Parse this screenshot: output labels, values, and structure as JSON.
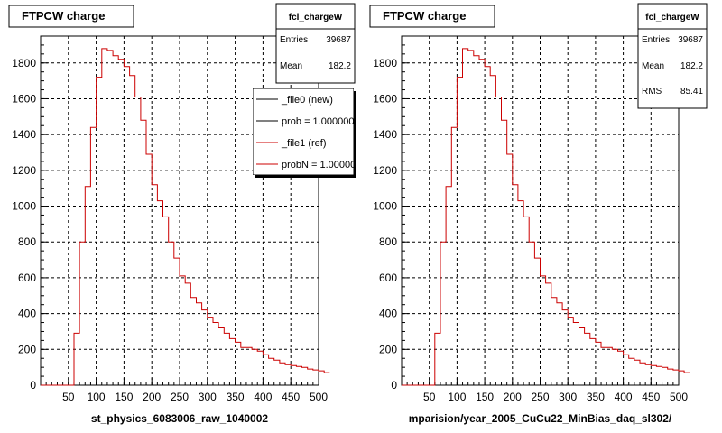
{
  "chart_data": [
    {
      "type": "bar",
      "title": "FTPCW charge",
      "xlabel": "st_physics_6083006_raw_1040002",
      "ylabel": "",
      "xlim": [
        0,
        500
      ],
      "ylim": [
        0,
        1950
      ],
      "x_ticks": [
        "50",
        "100",
        "150",
        "200",
        "250",
        "300",
        "350",
        "400",
        "450",
        "500"
      ],
      "y_ticks": [
        "0",
        "200",
        "400",
        "600",
        "800",
        "1000",
        "1200",
        "1400",
        "1600",
        "1800"
      ],
      "grid": true,
      "bin_width": 10,
      "bin_edges_start": 0,
      "values": [
        0,
        0,
        0,
        0,
        0,
        0,
        290,
        800,
        1110,
        1440,
        1720,
        1880,
        1870,
        1840,
        1820,
        1780,
        1730,
        1610,
        1480,
        1290,
        1120,
        1030,
        940,
        800,
        710,
        610,
        570,
        490,
        460,
        420,
        380,
        350,
        320,
        290,
        260,
        240,
        210,
        210,
        200,
        190,
        170,
        150,
        140,
        125,
        115,
        110,
        105,
        100,
        90,
        85,
        80,
        70
      ],
      "stats": {
        "name": "fcl_chargeW",
        "rows": [
          {
            "label": "Entries",
            "value": "39687"
          },
          {
            "label": "Mean",
            "value": "182.2"
          }
        ]
      },
      "legend": [
        {
          "label": "_file0 (new)",
          "color": "#000000"
        },
        {
          "label": "prob = 1.000000",
          "color": "#000000"
        },
        {
          "label": "_file1 (ref)",
          "color": "#cc0000"
        },
        {
          "label": "probN = 1.000000",
          "color": "#cc0000"
        }
      ]
    },
    {
      "type": "bar",
      "title": "FTPCW charge",
      "xlabel": "mparision/year_2005_CuCu22_MinBias_daq_sl302/",
      "ylabel": "",
      "xlim": [
        0,
        500
      ],
      "ylim": [
        0,
        1950
      ],
      "x_ticks": [
        "50",
        "100",
        "150",
        "200",
        "250",
        "300",
        "350",
        "400",
        "450",
        "500"
      ],
      "y_ticks": [
        "0",
        "200",
        "400",
        "600",
        "800",
        "1000",
        "1200",
        "1400",
        "1600",
        "1800"
      ],
      "grid": true,
      "bin_width": 10,
      "bin_edges_start": 0,
      "values": [
        0,
        0,
        0,
        0,
        0,
        0,
        290,
        800,
        1110,
        1440,
        1720,
        1880,
        1870,
        1840,
        1820,
        1780,
        1730,
        1610,
        1480,
        1290,
        1120,
        1030,
        940,
        800,
        710,
        610,
        570,
        490,
        460,
        420,
        380,
        350,
        320,
        290,
        260,
        240,
        210,
        210,
        200,
        190,
        170,
        150,
        140,
        125,
        115,
        110,
        105,
        100,
        90,
        85,
        80,
        70
      ],
      "stats": {
        "name": "fcl_chargeW",
        "rows": [
          {
            "label": "Entries",
            "value": "39687"
          },
          {
            "label": "Mean",
            "value": "182.2"
          },
          {
            "label": "RMS",
            "value": "85.41"
          }
        ]
      }
    }
  ]
}
